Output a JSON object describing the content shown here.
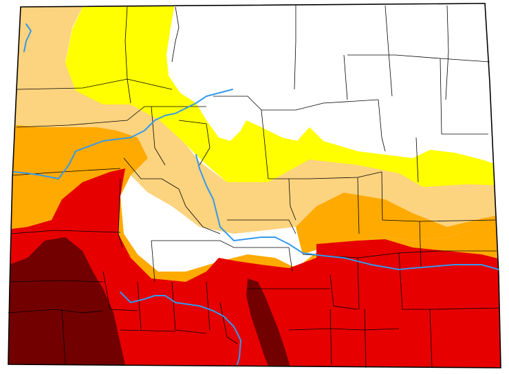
{
  "map": {
    "region": "Colorado",
    "legend_shown": false,
    "intensity_colors": {
      "none": "#ffffff",
      "D0": "#ffff00",
      "D1": "#fcd37f",
      "D2": "#ffaa00",
      "D3": "#e60000",
      "D4": "#730000"
    },
    "boundary_color": "#000000",
    "river_color": "#3399ee"
  }
}
